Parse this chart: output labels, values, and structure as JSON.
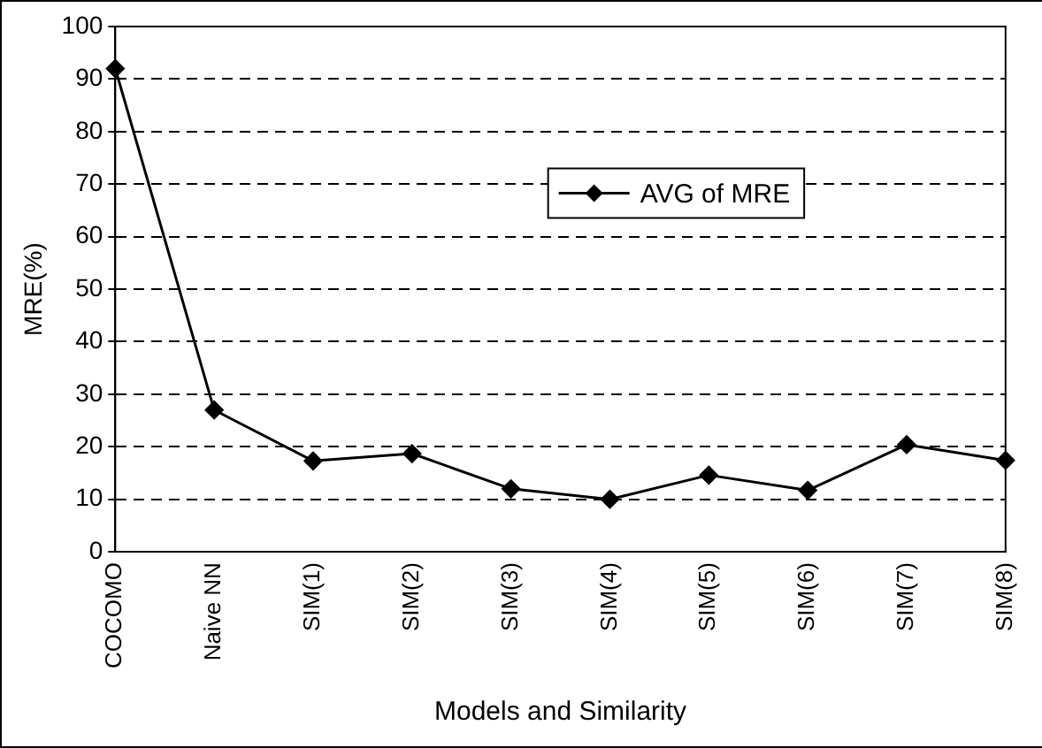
{
  "chart_data": {
    "type": "line",
    "xlabel": "Models and Similarity",
    "ylabel": "MRE(%)",
    "categories": [
      "COCOMO",
      "Naive NN",
      "SIM(1)",
      "SIM(2)",
      "SIM(3)",
      "SIM(4)",
      "SIM(5)",
      "SIM(6)",
      "SIM(7)",
      "SIM(8)"
    ],
    "series": [
      {
        "name": "AVG of MRE",
        "color": "#000000",
        "values": [
          92,
          27,
          17.3,
          18.7,
          12,
          10,
          14.6,
          11.7,
          20.4,
          17.4
        ]
      }
    ],
    "ylim": [
      0,
      100
    ],
    "yticks": [
      0,
      10,
      20,
      30,
      40,
      50,
      60,
      70,
      80,
      90,
      100
    ],
    "grid": "y",
    "legend": "center",
    "marker": "diamond",
    "line_style": "solid"
  }
}
